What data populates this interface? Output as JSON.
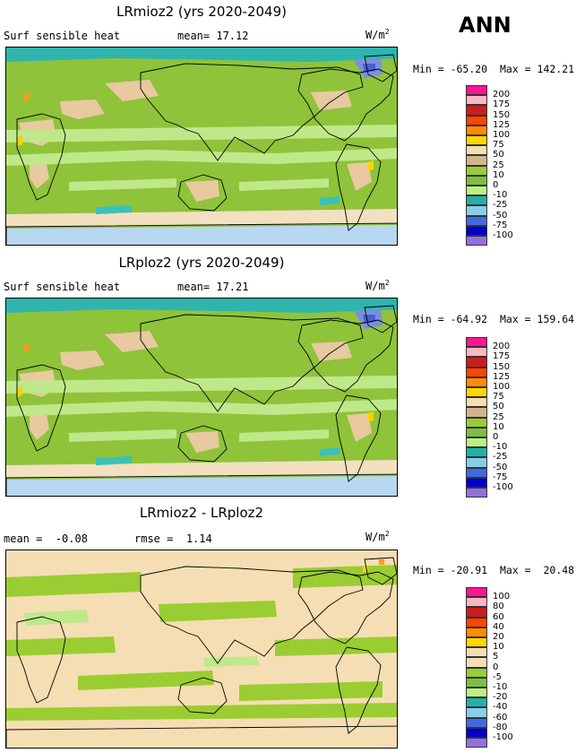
{
  "season": "ANN",
  "panels": [
    {
      "title": "LRmioz2 (yrs 2020-2049)",
      "left_text": "Surf sensible heat",
      "mid_label": "mean=",
      "mid_value": "17.12",
      "extra_label": "",
      "extra_value": "",
      "units": "W/m",
      "units_sup": "2",
      "min_label": "Min =",
      "min_value": "-65.20",
      "max_label": "Max =",
      "max_value": "142.21",
      "colorbar_levels": [
        "200",
        "175",
        "150",
        "125",
        "100",
        "75",
        "50",
        "25",
        "10",
        "0",
        "-10",
        "-25",
        "-50",
        "-75",
        "-100"
      ],
      "colorbar_colors": [
        "#ff1493",
        "#ffb6c1",
        "#c81e1e",
        "#ff4500",
        "#ff8c00",
        "#ffd700",
        "#f5deb3",
        "#d2b48c",
        "#9acd32",
        "#7fbf3f",
        "#bfef7f",
        "#20b2aa",
        "#87ceeb",
        "#4169e1",
        "#0000cd",
        "#9370db"
      ],
      "map_theme": "field"
    },
    {
      "title": "LRploz2 (yrs 2020-2049)",
      "left_text": "Surf sensible heat",
      "mid_label": "mean=",
      "mid_value": "17.21",
      "extra_label": "",
      "extra_value": "",
      "units": "W/m",
      "units_sup": "2",
      "min_label": "Min =",
      "min_value": "-64.92",
      "max_label": "Max =",
      "max_value": "159.64",
      "colorbar_levels": [
        "200",
        "175",
        "150",
        "125",
        "100",
        "75",
        "50",
        "25",
        "10",
        "0",
        "-10",
        "-25",
        "-50",
        "-75",
        "-100"
      ],
      "colorbar_colors": [
        "#ff1493",
        "#ffb6c1",
        "#c81e1e",
        "#ff4500",
        "#ff8c00",
        "#ffd700",
        "#f5deb3",
        "#d2b48c",
        "#9acd32",
        "#7fbf3f",
        "#bfef7f",
        "#20b2aa",
        "#87ceeb",
        "#4169e1",
        "#0000cd",
        "#9370db"
      ],
      "map_theme": "field"
    },
    {
      "title": "LRmioz2 - LRploz2",
      "left_text": "mean =",
      "mid_label": "",
      "mid_value": "-0.08",
      "extra_label": "rmse =",
      "extra_value": "1.14",
      "units": "W/m",
      "units_sup": "2",
      "min_label": "Min =",
      "min_value": "-20.91",
      "max_label": "Max =",
      "max_value": "20.48",
      "colorbar_levels": [
        "100",
        "80",
        "60",
        "40",
        "20",
        "10",
        "5",
        "0",
        "-5",
        "-10",
        "-20",
        "-40",
        "-60",
        "-80",
        "-100"
      ],
      "colorbar_colors": [
        "#ff1493",
        "#ffb6c1",
        "#c81e1e",
        "#ff4500",
        "#ff8c00",
        "#ffd700",
        "#f5deb3",
        "#f5deb3",
        "#9acd32",
        "#7fbf3f",
        "#bfef7f",
        "#20b2aa",
        "#87ceeb",
        "#4169e1",
        "#0000cd",
        "#9370db"
      ],
      "map_theme": "diff"
    }
  ]
}
